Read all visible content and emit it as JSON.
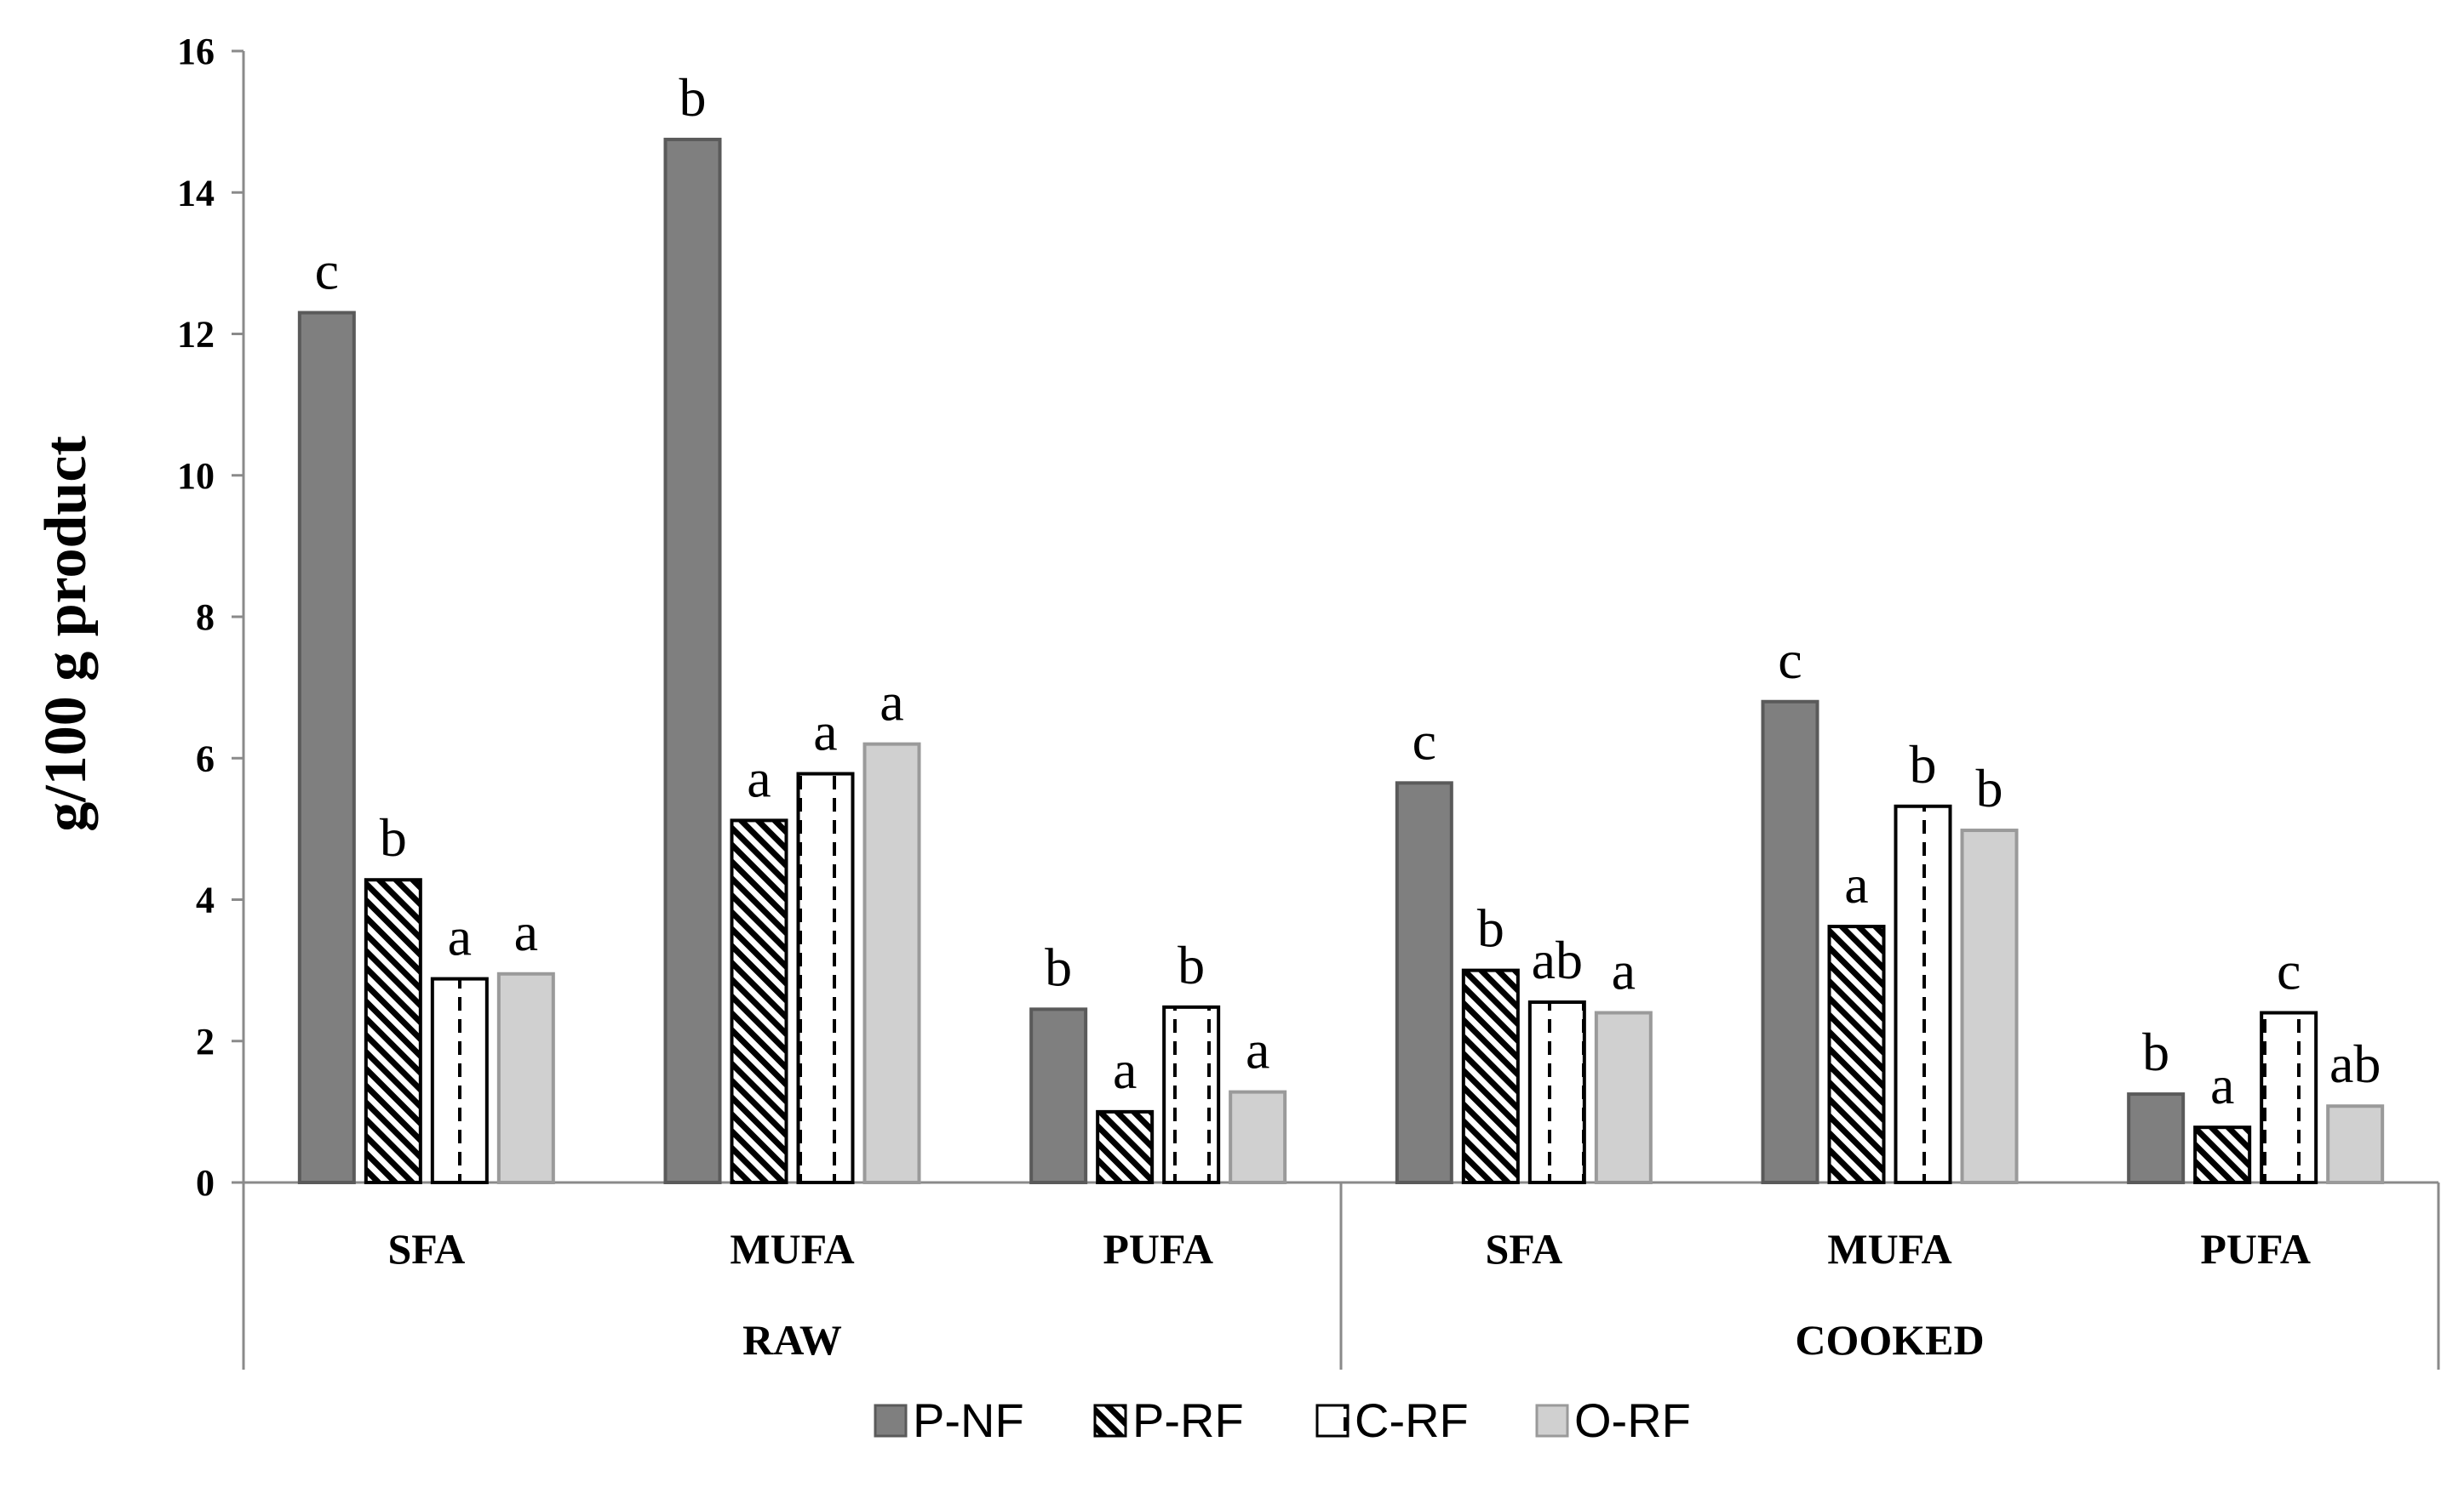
{
  "chart_data": {
    "type": "bar",
    "title": "",
    "xlabel": "",
    "ylabel": "g/100 g product",
    "ylim": [
      0,
      16
    ],
    "yticks": [
      0,
      2,
      4,
      6,
      8,
      10,
      12,
      14,
      16
    ],
    "categories": [
      "SFA",
      "MUFA",
      "PUFA",
      "SFA",
      "MUFA",
      "PUFA"
    ],
    "groups": [
      {
        "label": "RAW",
        "categories": [
          0,
          1,
          2
        ]
      },
      {
        "label": "COOKED",
        "categories": [
          3,
          4,
          5
        ]
      }
    ],
    "series": [
      {
        "name": "P-NF",
        "color": "#7f7f7f",
        "pattern": "solid",
        "values": [
          12.3,
          14.75,
          2.45,
          5.65,
          6.8,
          1.25
        ],
        "letters": [
          "c",
          "b",
          "b",
          "c",
          "c",
          "b"
        ]
      },
      {
        "name": "P-RF",
        "color": "#000000",
        "pattern": "diagonal-hatch",
        "values": [
          4.28,
          5.12,
          1.0,
          3.0,
          3.62,
          0.78
        ],
        "letters": [
          "b",
          "a",
          "a",
          "b",
          "a",
          "a"
        ]
      },
      {
        "name": "C-RF",
        "color": "#000000",
        "pattern": "dashed-vertical",
        "values": [
          2.88,
          5.78,
          2.48,
          2.55,
          5.32,
          2.4
        ],
        "letters": [
          "a",
          "a",
          "b",
          "ab",
          "b",
          "c"
        ]
      },
      {
        "name": "O-RF",
        "color": "#d0d0d0",
        "pattern": "solid",
        "values": [
          2.95,
          6.2,
          1.28,
          2.4,
          4.98,
          1.08
        ],
        "letters": [
          "a",
          "a",
          "a",
          "a",
          "b",
          "ab"
        ]
      }
    ],
    "legend_position": "bottom",
    "grid": false
  }
}
